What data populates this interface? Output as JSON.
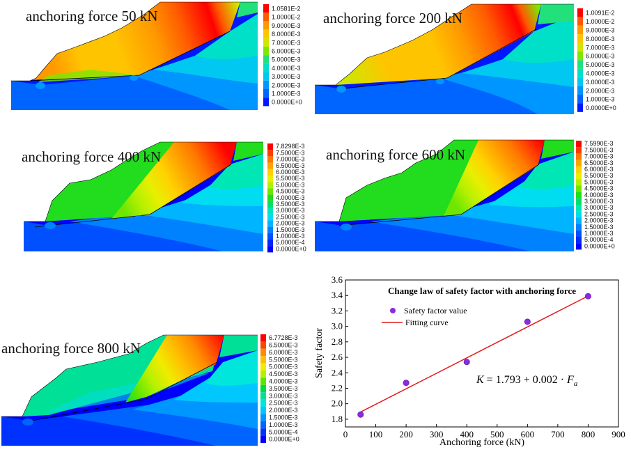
{
  "panels": [
    {
      "id": "p50",
      "title": "anchoring force 50 kN",
      "legend": [
        "1.0581E-2",
        "1.0000E-2",
        "9.0000E-3",
        "8.0000E-3",
        "7.0000E-3",
        "6.0000E-3",
        "5.0000E-3",
        "4.0000E-3",
        "3.0000E-3",
        "2.0000E-3",
        "1.0000E-3",
        "0.0000E+0"
      ]
    },
    {
      "id": "p200",
      "title": "anchoring force 200 kN",
      "legend": [
        "1.0091E-2",
        "1.0000E-2",
        "9.0000E-3",
        "8.0000E-3",
        "7.0000E-3",
        "6.0000E-3",
        "5.0000E-3",
        "4.0000E-3",
        "3.0000E-3",
        "2.0000E-3",
        "1.0000E-3",
        "0.0000E+0"
      ]
    },
    {
      "id": "p400",
      "title": "anchoring force 400 kN",
      "legend": [
        "7.8298E-3",
        "7.5000E-3",
        "7.0000E-3",
        "6.5000E-3",
        "6.0000E-3",
        "5.5000E-3",
        "5.0000E-3",
        "4.5000E-3",
        "4.0000E-3",
        "3.5000E-3",
        "3.0000E-3",
        "2.5000E-3",
        "2.0000E-3",
        "1.5000E-3",
        "1.0000E-3",
        "5.0000E-4",
        "0.0000E+0"
      ]
    },
    {
      "id": "p600",
      "title": "anchoring force 600 kN",
      "legend": [
        "7.5990E-3",
        "7.5000E-3",
        "7.0000E-3",
        "6.5000E-3",
        "6.0000E-3",
        "5.5000E-3",
        "5.0000E-3",
        "4.5000E-3",
        "4.0000E-3",
        "3.5000E-3",
        "3.0000E-3",
        "2.5000E-3",
        "2.0000E-3",
        "1.5000E-3",
        "1.0000E-3",
        "5.0000E-4",
        "0.0000E+0"
      ]
    },
    {
      "id": "p800",
      "title": "anchoring force 800 kN",
      "legend": [
        "6.7728E-3",
        "6.5000E-3",
        "6.0000E-3",
        "5.5000E-3",
        "5.0000E-3",
        "4.5000E-3",
        "4.0000E-3",
        "3.5000E-3",
        "3.0000E-3",
        "2.5000E-3",
        "2.0000E-3",
        "1.5000E-3",
        "1.0000E-3",
        "5.0000E-4",
        "0.0000E+0"
      ]
    }
  ],
  "colors": {
    "c12": [
      "#ff0000",
      "#ff5a00",
      "#ff9900",
      "#ffc400",
      "#cfe600",
      "#7ee600",
      "#22e07a",
      "#00e0c8",
      "#00c8f0",
      "#0096ff",
      "#0064ff",
      "#0018ff"
    ],
    "c17": [
      "#ff0000",
      "#ff3c00",
      "#ff7800",
      "#ffa500",
      "#ffd200",
      "#e8ef00",
      "#b4f000",
      "#6ee600",
      "#22dc1e",
      "#00e06e",
      "#00e6b4",
      "#00dcf0",
      "#00b4ff",
      "#0082ff",
      "#0050ff",
      "#0028ff",
      "#0000ff"
    ],
    "c15": [
      "#ff0000",
      "#ff4600",
      "#ff8c00",
      "#ffbe00",
      "#f0ec00",
      "#b4f000",
      "#5ae600",
      "#00dc3c",
      "#00e096",
      "#00e6dc",
      "#00c8ff",
      "#0096ff",
      "#0064ff",
      "#0032ff",
      "#0000ff"
    ],
    "line": "#e31a1c",
    "marker": "#8a2be2"
  },
  "chart_data": {
    "type": "scatter",
    "title": "Change law of safety factor with anchoring force",
    "xlabel": "Anchoring force (kN)",
    "ylabel": "Safety factor",
    "xlim": [
      0,
      900
    ],
    "ylim": [
      1.7,
      3.6
    ],
    "xticks": [
      0,
      100,
      200,
      300,
      400,
      500,
      600,
      700,
      800,
      900
    ],
    "yticks": [
      1.8,
      2.0,
      2.2,
      2.4,
      2.6,
      2.8,
      3.0,
      3.2,
      3.4,
      3.6
    ],
    "series": [
      {
        "name": "Safety factor value",
        "type": "scatter",
        "x": [
          50,
          200,
          400,
          600,
          800
        ],
        "y": [
          1.86,
          2.27,
          2.54,
          3.06,
          3.39
        ]
      },
      {
        "name": "Fitting curve",
        "type": "line",
        "x": [
          50,
          800
        ],
        "y": [
          1.893,
          3.393
        ]
      }
    ],
    "legend": [
      "Safety factor value",
      "Fitting curve"
    ],
    "annotation": {
      "lhs": "K",
      "eq": " = 1.793 + 0.002 · ",
      "var": "F",
      "sub": "a"
    }
  }
}
